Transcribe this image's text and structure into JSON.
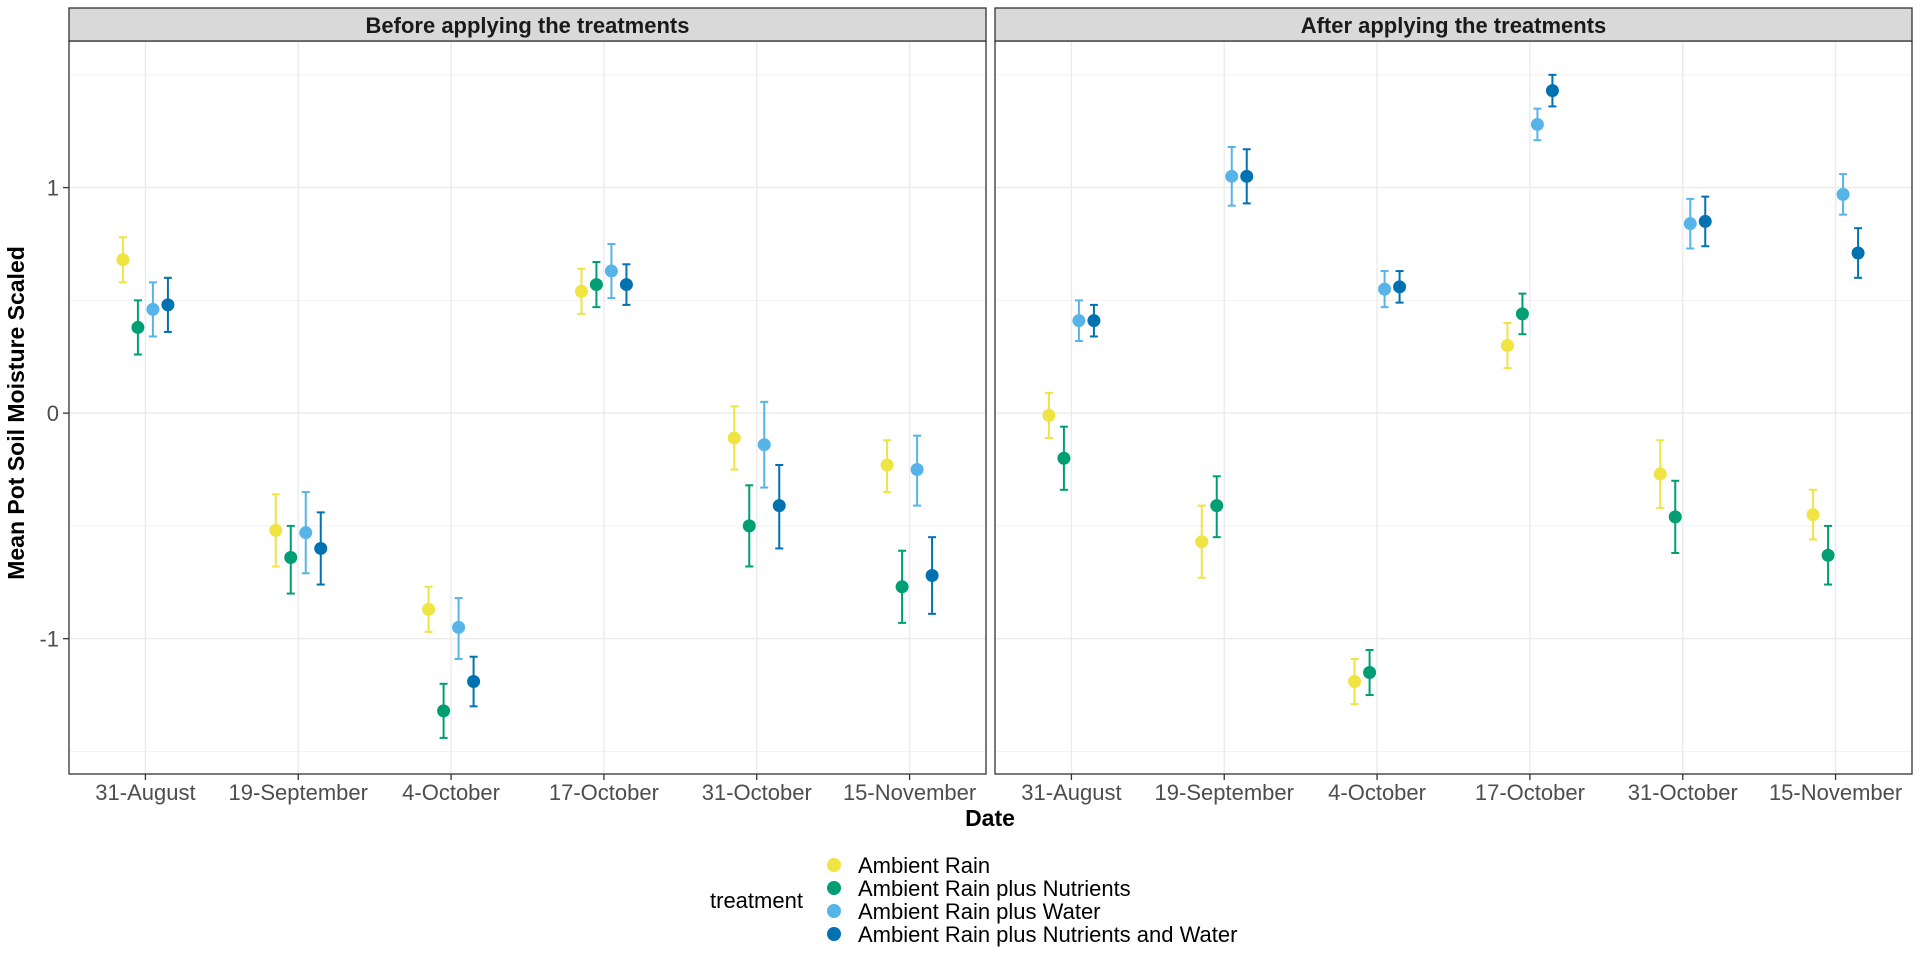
{
  "chart_data": {
    "type": "scatter",
    "xlabel": "Date",
    "ylabel": "Mean Pot Soil Moisture Scaled",
    "ylim": [
      -1.6,
      1.65
    ],
    "y_ticks": [
      -1,
      0,
      1
    ],
    "y_tick_labels": [
      "-1",
      "0",
      "1"
    ],
    "categories": [
      "31-August",
      "19-September",
      "4-October",
      "17-October",
      "31-October",
      "15-November"
    ],
    "grid": true,
    "legend": {
      "title": "treatment",
      "placement": "bottom"
    },
    "series": [
      {
        "name": "Ambient Rain",
        "color": "#F0E442"
      },
      {
        "name": "Ambient Rain plus Nutrients",
        "color": "#009E73"
      },
      {
        "name": "Ambient Rain plus Water",
        "color": "#56B4E9"
      },
      {
        "name": "Ambient Rain plus Nutrients and Water",
        "color": "#0072B2"
      }
    ],
    "panels": [
      {
        "title": "Before applying the treatments",
        "data": [
          {
            "mean": [
              0.68,
              -0.52,
              -0.87,
              0.54,
              -0.11,
              -0.23
            ],
            "lower": [
              0.58,
              -0.68,
              -0.97,
              0.44,
              -0.25,
              -0.35
            ],
            "upper": [
              0.78,
              -0.36,
              -0.77,
              0.64,
              0.03,
              -0.12
            ]
          },
          {
            "mean": [
              0.38,
              -0.64,
              -1.32,
              0.57,
              -0.5,
              -0.77
            ],
            "lower": [
              0.26,
              -0.8,
              -1.44,
              0.47,
              -0.68,
              -0.93
            ],
            "upper": [
              0.5,
              -0.5,
              -1.2,
              0.67,
              -0.32,
              -0.61
            ]
          },
          {
            "mean": [
              0.46,
              -0.53,
              -0.95,
              0.63,
              -0.14,
              -0.25
            ],
            "lower": [
              0.34,
              -0.71,
              -1.09,
              0.51,
              -0.33,
              -0.41
            ],
            "upper": [
              0.58,
              -0.35,
              -0.82,
              0.75,
              0.05,
              -0.1
            ]
          },
          {
            "mean": [
              0.48,
              -0.6,
              -1.19,
              0.57,
              -0.41,
              -0.72
            ],
            "lower": [
              0.36,
              -0.76,
              -1.3,
              0.48,
              -0.6,
              -0.89
            ],
            "upper": [
              0.6,
              -0.44,
              -1.08,
              0.66,
              -0.23,
              -0.55
            ]
          }
        ]
      },
      {
        "title": "After applying the treatments",
        "data": [
          {
            "mean": [
              -0.01,
              -0.57,
              -1.19,
              0.3,
              -0.27,
              -0.45
            ],
            "lower": [
              -0.11,
              -0.73,
              -1.29,
              0.2,
              -0.42,
              -0.56
            ],
            "upper": [
              0.09,
              -0.41,
              -1.09,
              0.4,
              -0.12,
              -0.34
            ]
          },
          {
            "mean": [
              -0.2,
              -0.41,
              -1.15,
              0.44,
              -0.46,
              -0.63
            ],
            "lower": [
              -0.34,
              -0.55,
              -1.25,
              0.35,
              -0.62,
              -0.76
            ],
            "upper": [
              -0.06,
              -0.28,
              -1.05,
              0.53,
              -0.3,
              -0.5
            ]
          },
          {
            "mean": [
              0.41,
              1.05,
              0.55,
              1.28,
              0.84,
              0.97
            ],
            "lower": [
              0.32,
              0.92,
              0.47,
              1.21,
              0.73,
              0.88
            ],
            "upper": [
              0.5,
              1.18,
              0.63,
              1.35,
              0.95,
              1.06
            ]
          },
          {
            "mean": [
              0.41,
              1.05,
              0.56,
              1.43,
              0.85,
              0.71
            ],
            "lower": [
              0.34,
              0.93,
              0.49,
              1.36,
              0.74,
              0.6
            ],
            "upper": [
              0.48,
              1.17,
              0.63,
              1.5,
              0.96,
              0.82
            ]
          }
        ]
      }
    ]
  }
}
